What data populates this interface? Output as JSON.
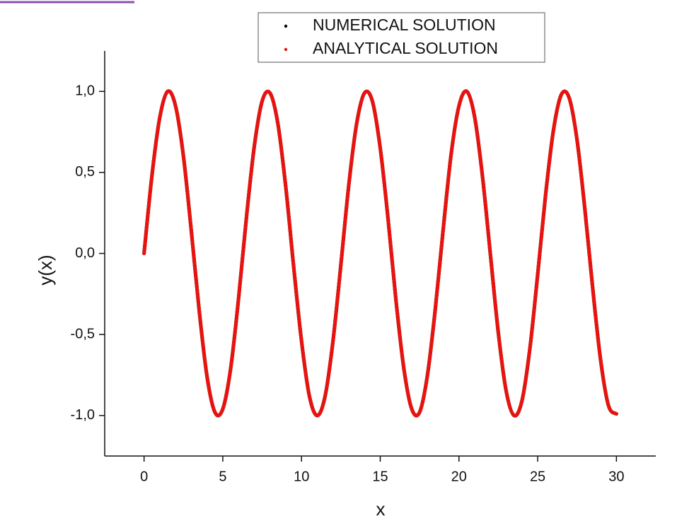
{
  "chart_data": {
    "type": "line",
    "x_label": "x",
    "y_label": "y(x)",
    "xlim": [
      -2.5,
      32.5
    ],
    "xticks": [
      0,
      5,
      10,
      15,
      20,
      25,
      30
    ],
    "ylim": [
      -1.25,
      1.25
    ],
    "yticks": [
      {
        "value": -1.0,
        "label": "-1,0"
      },
      {
        "value": -0.5,
        "label": "-0,5"
      },
      {
        "value": 0,
        "label": "0,0"
      },
      {
        "value": 0.5,
        "label": "0,5"
      },
      {
        "value": 1.0,
        "label": "1,0"
      }
    ],
    "x": [
      0,
      0.5,
      1,
      1.5,
      2,
      2.5,
      3,
      3.5,
      4,
      4.5,
      5,
      5.5,
      6,
      6.5,
      7,
      7.5,
      8,
      8.5,
      9,
      9.5,
      10,
      10.5,
      11,
      11.5,
      12,
      12.5,
      13,
      13.5,
      14,
      14.5,
      15,
      15.5,
      16,
      16.5,
      17,
      17.5,
      18,
      18.5,
      19,
      19.5,
      20,
      20.5,
      21,
      21.5,
      22,
      22.5,
      23,
      23.5,
      24,
      24.5,
      25,
      25.5,
      26,
      26.5,
      27,
      27.5,
      28,
      28.5,
      29,
      29.5,
      30
    ],
    "series": [
      {
        "name": "NUMERICAL SOLUTION",
        "color": "#000000",
        "values": [
          0,
          0.48,
          0.84,
          1.0,
          0.91,
          0.6,
          0.14,
          -0.35,
          -0.76,
          -0.98,
          -0.96,
          -0.71,
          -0.28,
          0.22,
          0.66,
          0.94,
          0.99,
          0.8,
          0.41,
          -0.08,
          -0.54,
          -0.88,
          -1.0,
          -0.88,
          -0.54,
          -0.07,
          0.42,
          0.8,
          0.99,
          0.94,
          0.65,
          0.21,
          -0.29,
          -0.71,
          -0.96,
          -0.98,
          -0.75,
          -0.34,
          0.15,
          0.61,
          0.91,
          1.0,
          0.84,
          0.47,
          -0.01,
          -0.49,
          -0.85,
          -1.0,
          -0.91,
          -0.59,
          -0.13,
          0.36,
          0.76,
          0.98,
          0.96,
          0.7,
          0.27,
          -0.22,
          -0.66,
          -0.94,
          -0.99
        ]
      },
      {
        "name": "ANALYTICAL SOLUTION",
        "color": "#e8130f",
        "values": [
          0,
          0.48,
          0.84,
          1.0,
          0.91,
          0.6,
          0.14,
          -0.35,
          -0.76,
          -0.98,
          -0.96,
          -0.71,
          -0.28,
          0.22,
          0.66,
          0.94,
          0.99,
          0.8,
          0.41,
          -0.08,
          -0.54,
          -0.88,
          -1.0,
          -0.88,
          -0.54,
          -0.07,
          0.42,
          0.8,
          0.99,
          0.94,
          0.65,
          0.21,
          -0.29,
          -0.71,
          -0.96,
          -0.98,
          -0.75,
          -0.34,
          0.15,
          0.61,
          0.91,
          1.0,
          0.84,
          0.47,
          -0.01,
          -0.49,
          -0.85,
          -1.0,
          -0.91,
          -0.59,
          -0.13,
          0.36,
          0.76,
          0.98,
          0.96,
          0.7,
          0.27,
          -0.22,
          -0.66,
          -0.94,
          -0.99
        ]
      }
    ]
  }
}
